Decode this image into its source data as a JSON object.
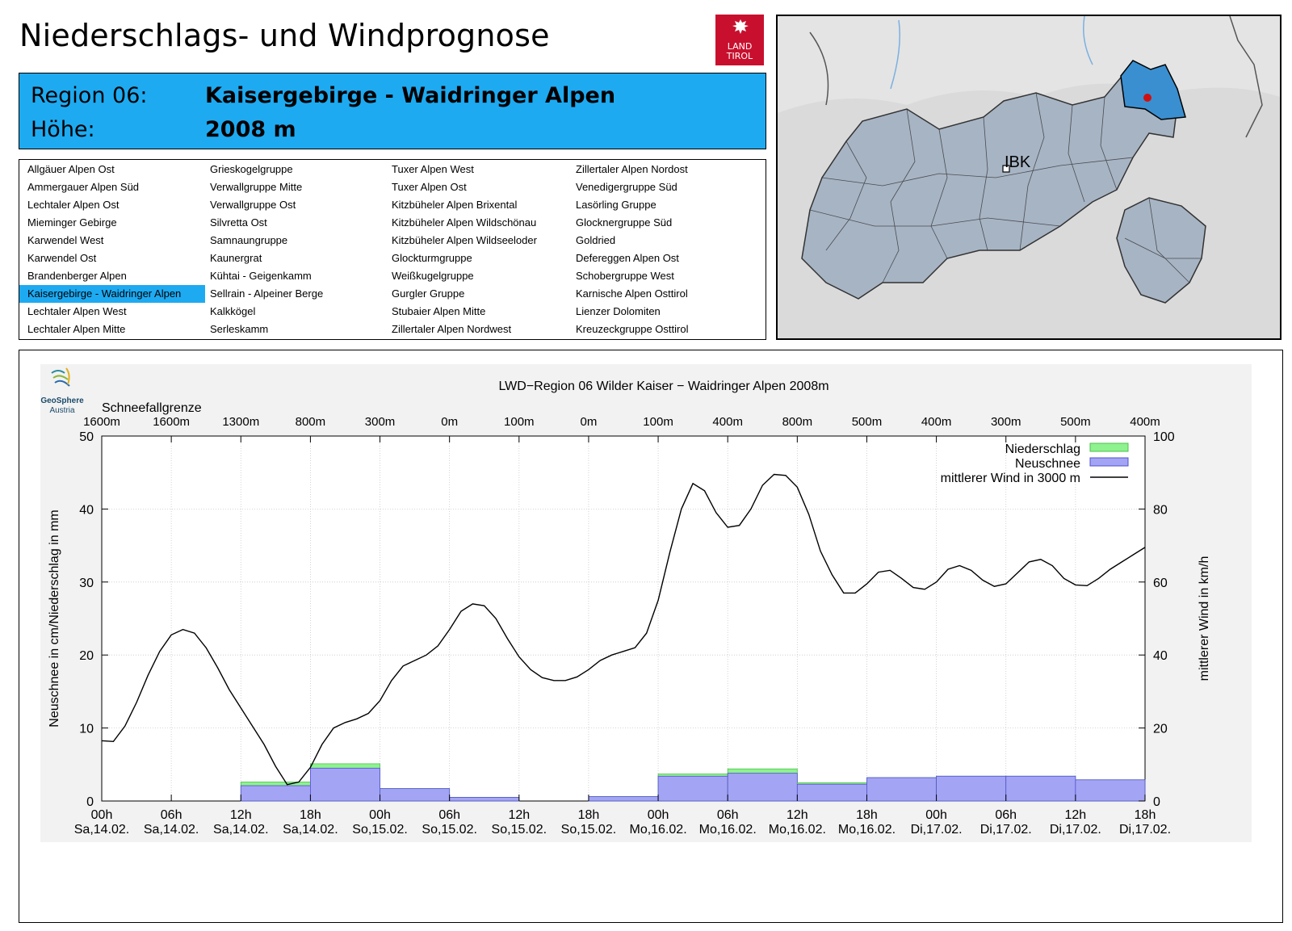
{
  "page_title": "Niederschlags- und Windprognose",
  "logo": {
    "line1": "LAND",
    "line2": "TIROL",
    "color": "#c8102e"
  },
  "region": {
    "region_label": "Region 06:",
    "region_name": "Kaisergebirge - Waidringer Alpen",
    "height_label": "Höhe:",
    "height_value": "2008 m",
    "highlight_color": "#1eaaf1"
  },
  "region_list": {
    "selected": "Kaisergebirge - Waidringer Alpen",
    "columns": [
      [
        "Allgäuer Alpen Ost",
        "Ammergauer Alpen Süd",
        "Lechtaler Alpen Ost",
        "Mieminger Gebirge",
        "Karwendel West",
        "Karwendel Ost",
        "Brandenberger Alpen",
        "Kaisergebirge - Waidringer Alpen",
        "Lechtaler Alpen West",
        "Lechtaler Alpen Mitte"
      ],
      [
        "Grieskogelgruppe",
        "Verwallgruppe Mitte",
        "Verwallgruppe Ost",
        "Silvretta Ost",
        "Samnaungruppe",
        "Kaunergrat",
        "Kühtai - Geigenkamm",
        "Sellrain - Alpeiner Berge",
        "Kalkkögel",
        "Serleskamm"
      ],
      [
        "Tuxer Alpen West",
        "Tuxer Alpen Ost",
        "Kitzbüheler Alpen Brixental",
        "Kitzbüheler Alpen Wildschönau",
        "Kitzbüheler Alpen Wildseeloder",
        "Glockturmgruppe",
        "Weißkugelgruppe",
        "Gurgler Gruppe",
        "Stubaier Alpen Mitte",
        "Zillertaler Alpen Nordwest"
      ],
      [
        "Zillertaler Alpen Nordost",
        "Venedigergruppe Süd",
        "Lasörling Gruppe",
        "Glocknergruppe Süd",
        "Goldried",
        "Defereggen Alpen Ost",
        "Schobergruppe West",
        "Karnische Alpen Osttirol",
        "Lienzer Dolomiten",
        "Kreuzeckgruppe Osttirol"
      ]
    ]
  },
  "map": {
    "city_label": "IBK",
    "region_color": "#3a8fd0",
    "marker_color": "#d01010"
  },
  "chart_data": {
    "type": "bar+line",
    "title": "LWD−Region 06 Wilder Kaiser − Waidringer Alpen 2008m",
    "brand": {
      "name": "GeoSphere",
      "sub": "Austria"
    },
    "snowline_title": "Schneefallgrenze",
    "snowline": [
      "1600m",
      "1600m",
      "1300m",
      "800m",
      "300m",
      "0m",
      "100m",
      "0m",
      "100m",
      "400m",
      "800m",
      "500m",
      "400m",
      "300m",
      "500m",
      "400m"
    ],
    "x_ticks": [
      "00h",
      "06h",
      "12h",
      "18h",
      "00h",
      "06h",
      "12h",
      "18h",
      "00h",
      "06h",
      "12h",
      "18h",
      "00h",
      "06h",
      "12h",
      "18h"
    ],
    "x_dates": [
      "Sa,14.02.",
      "Sa,14.02.",
      "Sa,14.02.",
      "Sa,14.02.",
      "So,15.02.",
      "So,15.02.",
      "So,15.02.",
      "So,15.02.",
      "Mo,16.02.",
      "Mo,16.02.",
      "Mo,16.02.",
      "Mo,16.02.",
      "Di,17.02.",
      "Di,17.02.",
      "Di,17.02.",
      "Di,17.02."
    ],
    "ylabel_left": "Neuschnee in cm/Niederschlag in mm",
    "ylabel_right": "mittlerer Wind in km/h",
    "ylim_left": [
      0,
      50
    ],
    "ylim_right": [
      0,
      100
    ],
    "yticks_left": [
      0,
      10,
      20,
      30,
      40,
      50
    ],
    "yticks_right": [
      0,
      20,
      40,
      60,
      80,
      100
    ],
    "x_range_hours": [
      0,
      90
    ],
    "legend": [
      "Niederschlag",
      "Neuschnee",
      "mittlerer Wind in 3000 m"
    ],
    "colors": {
      "niederschlag": "#8ef28e",
      "neuschnee": "#a4a4f4",
      "wind": "#000000",
      "plot_bg": "#f2f2f2"
    },
    "bars": [
      {
        "start_h": 12,
        "end_h": 18,
        "niederschlag": 2.6,
        "neuschnee": 2.1
      },
      {
        "start_h": 18,
        "end_h": 24,
        "niederschlag": 5.1,
        "neuschnee": 4.5
      },
      {
        "start_h": 24,
        "end_h": 30,
        "niederschlag": 1.7,
        "neuschnee": 1.7
      },
      {
        "start_h": 30,
        "end_h": 36,
        "niederschlag": 0.5,
        "neuschnee": 0.5
      },
      {
        "start_h": 42,
        "end_h": 48,
        "niederschlag": 0.6,
        "neuschnee": 0.6
      },
      {
        "start_h": 48,
        "end_h": 54,
        "niederschlag": 3.7,
        "neuschnee": 3.4
      },
      {
        "start_h": 54,
        "end_h": 60,
        "niederschlag": 4.4,
        "neuschnee": 3.8
      },
      {
        "start_h": 60,
        "end_h": 66,
        "niederschlag": 2.5,
        "neuschnee": 2.3
      },
      {
        "start_h": 66,
        "end_h": 72,
        "niederschlag": 3.2,
        "neuschnee": 3.2
      },
      {
        "start_h": 72,
        "end_h": 78,
        "niederschlag": 3.4,
        "neuschnee": 3.4
      },
      {
        "start_h": 78,
        "end_h": 84,
        "niederschlag": 3.4,
        "neuschnee": 3.4
      },
      {
        "start_h": 84,
        "end_h": 90,
        "niederschlag": 2.9,
        "neuschnee": 2.9
      }
    ],
    "wind": {
      "hours": [
        0,
        1,
        2,
        3,
        4,
        5,
        6,
        7,
        8,
        9,
        10,
        11,
        12,
        13,
        14,
        15,
        16,
        17,
        18,
        19,
        20,
        21,
        22,
        23,
        24,
        25,
        26,
        27,
        28,
        29,
        30,
        31,
        32,
        33,
        34,
        35,
        36,
        37,
        38,
        39,
        40,
        41,
        42,
        43,
        44,
        45,
        46,
        47,
        48,
        49,
        50,
        51,
        52,
        53,
        54,
        55,
        56,
        57,
        58,
        59,
        60,
        61,
        62,
        63,
        64,
        65,
        66,
        67,
        68,
        69,
        70,
        71,
        72,
        73,
        74,
        75,
        76,
        77,
        78,
        79,
        80,
        81,
        82,
        83,
        84,
        85,
        86,
        87,
        88,
        89,
        90
      ],
      "values": [
        16.5,
        16.3,
        20.5,
        27,
        34.5,
        41,
        45.5,
        47,
        46,
        42,
        36.5,
        30.5,
        25.5,
        20.5,
        15.5,
        9.5,
        4.5,
        5.2,
        9.2,
        15.5,
        20,
        21.5,
        22.5,
        24,
        27.5,
        33,
        37,
        38.5,
        40,
        42.5,
        47,
        52,
        54,
        53.5,
        50,
        44.5,
        39.5,
        36,
        33.8,
        33,
        33,
        34,
        36,
        38.5,
        40,
        41,
        42,
        46,
        55,
        68,
        80,
        87,
        85,
        79,
        75,
        75.5,
        80,
        86.5,
        89.5,
        89.2,
        86,
        78.5,
        68.5,
        62,
        57,
        57,
        59.5,
        62.7,
        63.2,
        61,
        58.5,
        58,
        60,
        63.5,
        64.5,
        63.2,
        60.5,
        58.8,
        59.5,
        62.5,
        65.5,
        66.2,
        64.5,
        61,
        59.2,
        59,
        61,
        63.5,
        65.5,
        67.5,
        69.5
      ]
    }
  }
}
